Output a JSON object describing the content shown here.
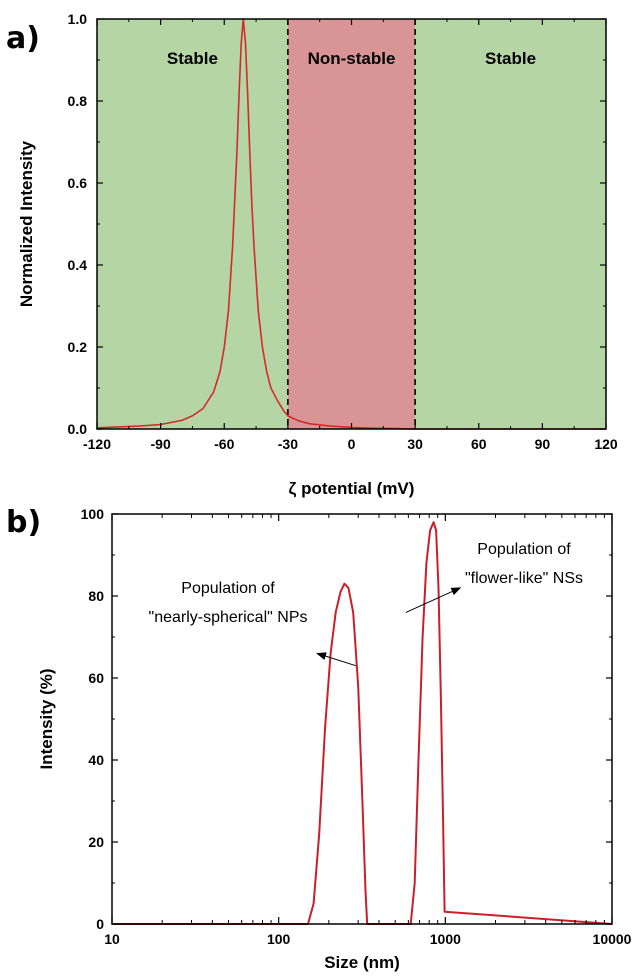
{
  "panel_labels": {
    "a": "a)",
    "b": "b)"
  },
  "chart_data": [
    {
      "type": "line",
      "xlabel": "ζ potential (mV)",
      "ylabel": "Normalized Intensity",
      "xlim": [
        -120,
        120
      ],
      "ylim": [
        0,
        1.0
      ],
      "xticks": [
        -120,
        -90,
        -60,
        -30,
        0,
        30,
        60,
        90,
        120
      ],
      "yticks": [
        0.0,
        0.2,
        0.4,
        0.6,
        0.8,
        1.0
      ],
      "xtick_labels": [
        "-120",
        "-90",
        "-60",
        "-30",
        "0",
        "30",
        "60",
        "90",
        "120"
      ],
      "ytick_labels": [
        "0.0",
        "0.2",
        "0.4",
        "0.6",
        "0.8",
        "1.0"
      ],
      "regions": [
        {
          "label": "Stable",
          "x": [
            -120,
            -30
          ],
          "color": "#b5d5a4"
        },
        {
          "label": "Non-stable",
          "x": [
            -30,
            30
          ],
          "color": "#d99596"
        },
        {
          "label": "Stable",
          "x": [
            30,
            120
          ],
          "color": "#b5d5a4"
        }
      ],
      "boundaries": [
        -30,
        30
      ],
      "series": [
        {
          "color": "#d42a2a",
          "x": [
            -120,
            -110,
            -100,
            -90,
            -80,
            -75,
            -70,
            -65,
            -62,
            -60,
            -58,
            -56,
            -54,
            -53,
            -52,
            -51,
            -50,
            -49,
            -48,
            -47,
            -46,
            -44,
            -42,
            -40,
            -38,
            -35,
            -32,
            -30,
            -25,
            -20,
            -10,
            0,
            10,
            20,
            30,
            60,
            90,
            120
          ],
          "y": [
            0.003,
            0.005,
            0.007,
            0.011,
            0.021,
            0.032,
            0.05,
            0.09,
            0.14,
            0.2,
            0.29,
            0.45,
            0.68,
            0.82,
            0.94,
            1.0,
            0.94,
            0.82,
            0.68,
            0.55,
            0.45,
            0.29,
            0.2,
            0.14,
            0.1,
            0.07,
            0.045,
            0.032,
            0.02,
            0.013,
            0.007,
            0.004,
            0.002,
            0.001,
            0.0,
            0.0,
            0.0,
            0.0
          ]
        }
      ]
    },
    {
      "type": "line",
      "xscale": "log",
      "xlabel": "Size (nm)",
      "ylabel": "Intensity (%)",
      "xlim": [
        10,
        10000
      ],
      "ylim": [
        0,
        100
      ],
      "xticks": [
        10,
        100,
        1000,
        10000
      ],
      "yticks": [
        0,
        20,
        40,
        60,
        80,
        100
      ],
      "xtick_labels": [
        "10",
        "100",
        "1000",
        "10000"
      ],
      "ytick_labels": [
        "0",
        "20",
        "40",
        "60",
        "80",
        "100"
      ],
      "series": [
        {
          "color": "#c8202a",
          "x": [
            10,
            150,
            162,
            175,
            190,
            205,
            220,
            235,
            248,
            262,
            280,
            300,
            318,
            332,
            340,
            620,
            655,
            690,
            730,
            770,
            810,
            850,
            880,
            910,
            940,
            970,
            990,
            10000
          ],
          "y": [
            0,
            0,
            5,
            22,
            48,
            66,
            76,
            81,
            83,
            82,
            76,
            58,
            30,
            8,
            0,
            0,
            10,
            40,
            70,
            88,
            96,
            98,
            96,
            82,
            55,
            25,
            3,
            0
          ]
        }
      ],
      "annotations": [
        {
          "lines": [
            "Population of",
            "\"nearly-spherical\" NPs"
          ],
          "arrow_from": [
            290,
            63
          ],
          "arrow_to": [
            170,
            66
          ]
        },
        {
          "lines": [
            "Population of",
            "\"flower-like\" NSs"
          ],
          "arrow_from": [
            580,
            76
          ],
          "arrow_to": [
            1230,
            82
          ]
        }
      ]
    }
  ]
}
